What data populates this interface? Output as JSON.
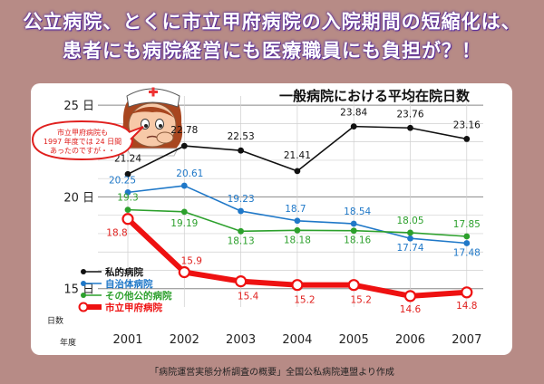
{
  "header": {
    "line1": "公立病院、とくに市立甲府病院の入院期間の短縮化は、",
    "line2": "患者にも病院経営にも医療職員にも負担が？！"
  },
  "speech_bubble": {
    "lines": [
      "市立甲府病院も",
      "1997 年度では 24 日間",
      "あったのですが・・"
    ]
  },
  "source_note": "「病院運営実態分析調査の概要」全国公私病院連盟より作成",
  "colors": {
    "background": "#b78b86",
    "headline_outline": "#5a2e9a",
    "private": "#111111",
    "municipal": "#1f78c8",
    "other_public": "#2ca02c",
    "kofu": "#ee1111"
  },
  "chart_data": {
    "type": "line",
    "title": "一般病院における平均在院日数",
    "xlabel": "年度",
    "ylabel": "日数",
    "x": [
      "2001",
      "2002",
      "2003",
      "2004",
      "2005",
      "2006",
      "2007"
    ],
    "y_ticks": [
      "15 日",
      "20 日",
      "25 日"
    ],
    "ylim": [
      14,
      25.5
    ],
    "grid": true,
    "legend_position": "lower-left",
    "series": [
      {
        "name": "私的病院",
        "color": "#111111",
        "values": [
          21.24,
          22.78,
          22.53,
          21.41,
          23.84,
          23.76,
          23.16
        ]
      },
      {
        "name": "自治体病院",
        "color": "#1f78c8",
        "values": [
          20.25,
          20.61,
          19.23,
          18.7,
          18.54,
          17.74,
          17.48
        ]
      },
      {
        "name": "その他公的病院",
        "color": "#2ca02c",
        "values": [
          19.3,
          19.19,
          18.13,
          18.18,
          18.16,
          18.05,
          17.85
        ]
      },
      {
        "name": "市立甲府病院",
        "color": "#ee1111",
        "values": [
          18.8,
          15.9,
          15.4,
          15.2,
          15.2,
          14.6,
          14.8
        ]
      }
    ],
    "data_labels": [
      [
        "21.24",
        "22.78",
        "22.53",
        "21.41",
        "23.84",
        "23.76",
        "23.16"
      ],
      [
        "20.25",
        "20.61",
        "19.23",
        "18.7",
        "18.54",
        "17.74",
        "17.48"
      ],
      [
        "19.3",
        "19.19",
        "18.13",
        "18.18",
        "18.16",
        "18.05",
        "17.85"
      ],
      [
        "18.8",
        "15.9",
        "15.4",
        "15.2",
        "15.2",
        "14.6",
        "14.8"
      ]
    ]
  }
}
